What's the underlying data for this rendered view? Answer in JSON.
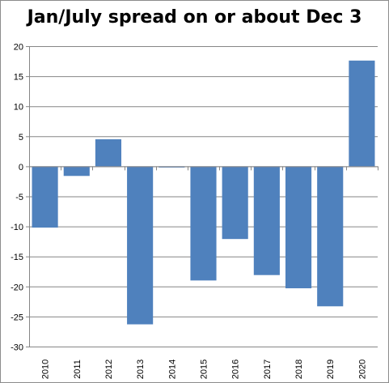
{
  "chart_data": {
    "type": "bar",
    "title": "Jan/July spread on or about Dec 3",
    "xlabel": "",
    "ylabel": "",
    "categories": [
      "2010",
      "2011",
      "2012",
      "2013",
      "2014",
      "2015",
      "2016",
      "2017",
      "2018",
      "2019",
      "2020"
    ],
    "values": [
      -10.2,
      -1.6,
      4.5,
      -26.3,
      -0.2,
      -19.0,
      -12.1,
      -18.1,
      -20.3,
      -23.3,
      17.6
    ],
    "ylim": [
      -30,
      20
    ],
    "yticks": [
      20,
      15,
      10,
      5,
      0,
      -5,
      -10,
      -15,
      -20,
      -25,
      -30
    ],
    "grid": true,
    "legend": "none",
    "bar_color": "#4f81bd",
    "grid_color": "#868686"
  }
}
